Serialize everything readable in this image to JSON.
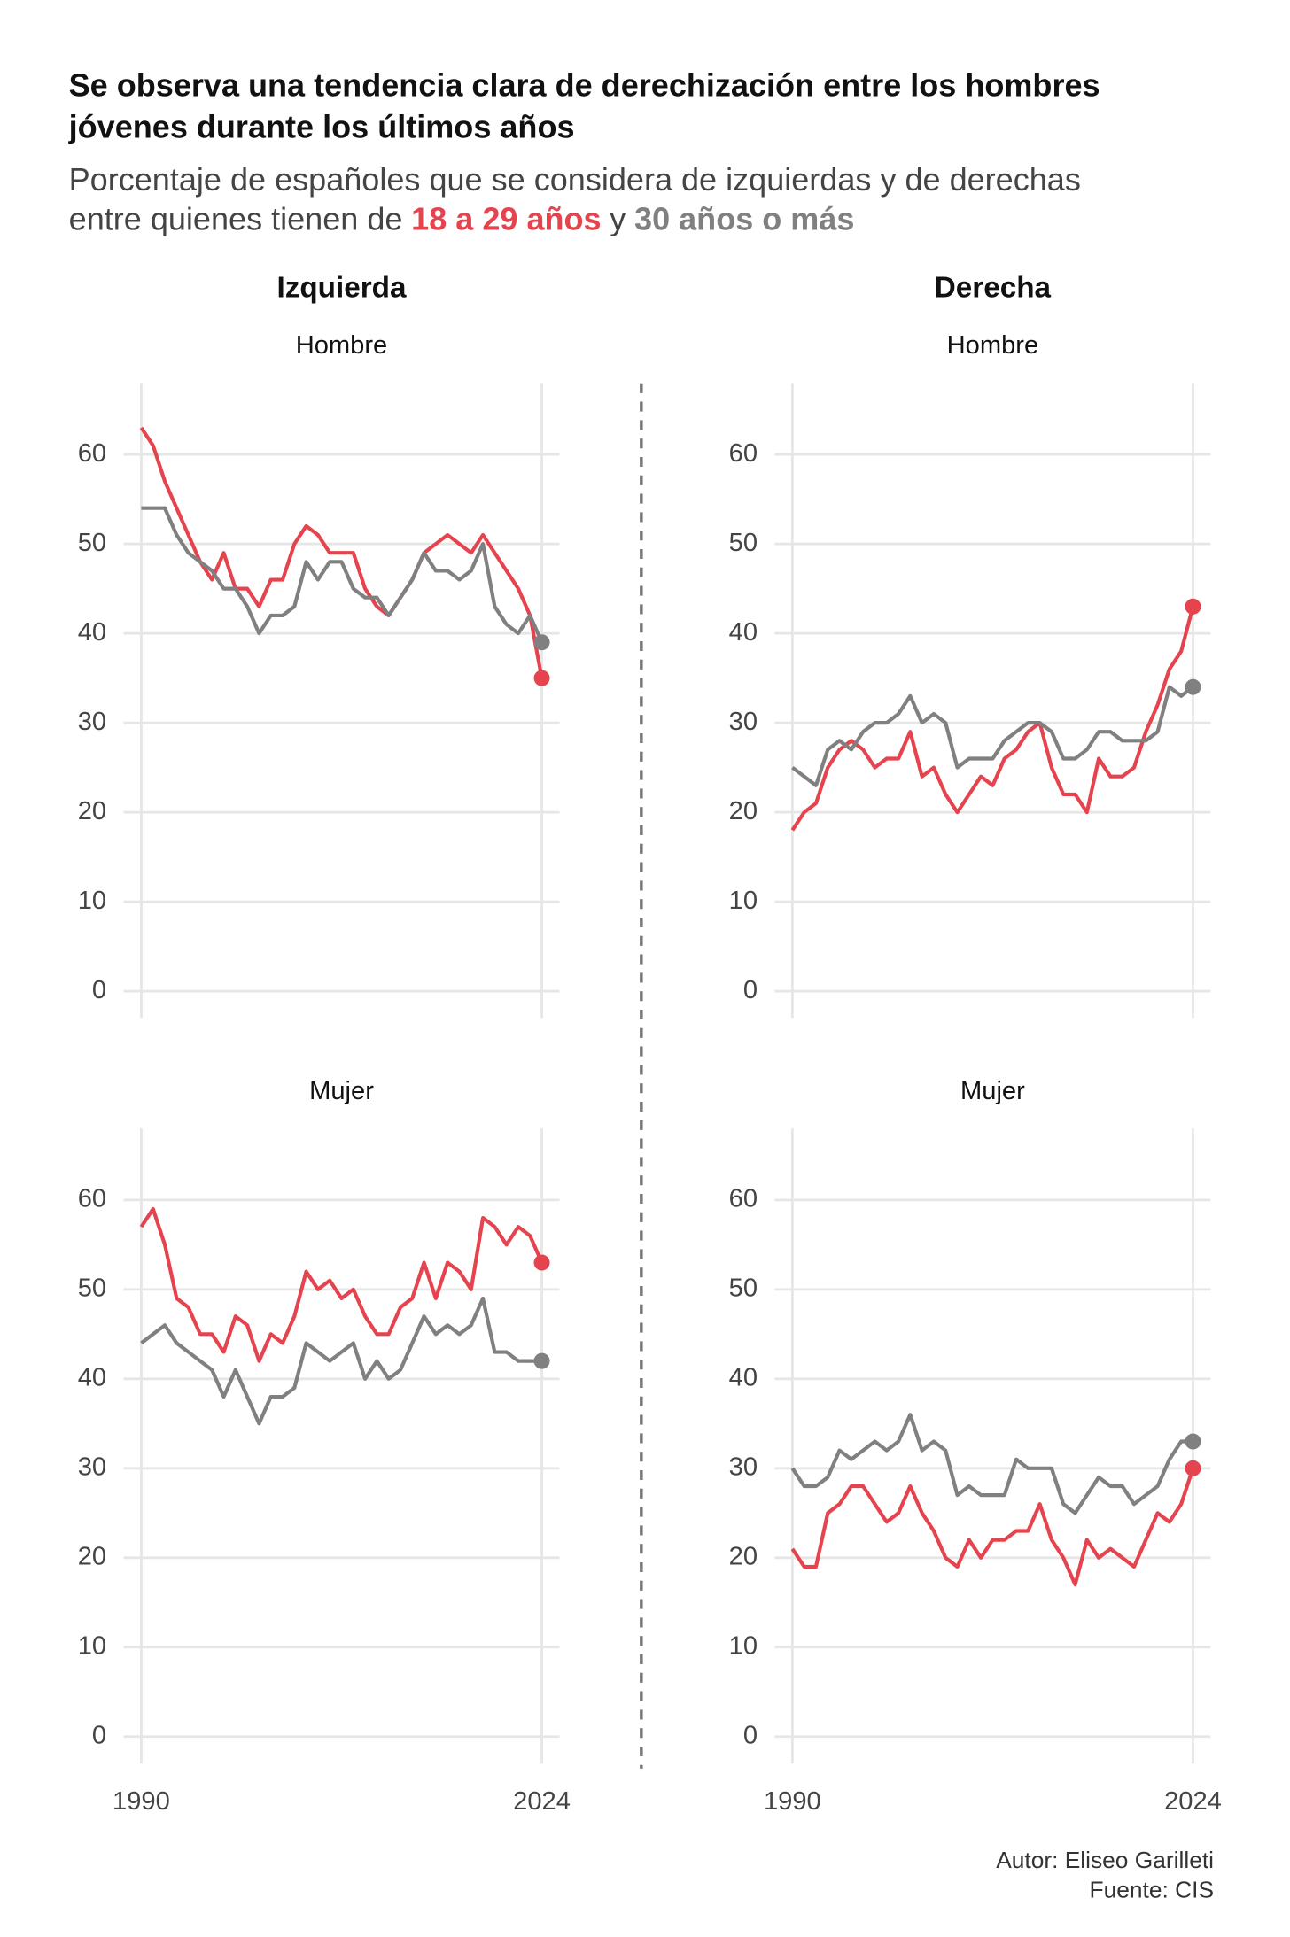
{
  "title_lines": [
    "Se observa una tendencia clara de derechización entre los hombres",
    "jóvenes durante los últimos años"
  ],
  "subtitle_lines": [
    "Porcentaje de españoles que se considera de izquierdas y de derechas",
    "entre quienes tienen de"
  ],
  "subtitle_joiner": "y",
  "columns": [
    "Izquierda",
    "Derecha"
  ],
  "credits": [
    "Autor: Eliseo Garilleti",
    "Fuente: CIS"
  ],
  "chart_data": [
    {
      "type": "line",
      "column": 0,
      "row": 0,
      "subtitle": "Hombre",
      "x": [
        1990,
        1991,
        1992,
        1993,
        1994,
        1995,
        1996,
        1997,
        1998,
        1999,
        2000,
        2001,
        2002,
        2003,
        2004,
        2005,
        2006,
        2007,
        2008,
        2009,
        2010,
        2011,
        2012,
        2013,
        2014,
        2015,
        2016,
        2017,
        2018,
        2019,
        2020,
        2021,
        2022,
        2023,
        2024
      ],
      "xlim": [
        1988.5,
        2025.5
      ],
      "xticks": [
        1990,
        2024
      ],
      "ylim": [
        -3,
        68
      ],
      "yticks": [
        0,
        10,
        20,
        30,
        40,
        50,
        60
      ],
      "grid": true,
      "series": [
        {
          "name": "18 a 29 años",
          "color": "#e5444f",
          "values": [
            63,
            61,
            57,
            54,
            51,
            48,
            46,
            49,
            45,
            45,
            43,
            46,
            46,
            50,
            52,
            51,
            49,
            49,
            49,
            45,
            43,
            42,
            44,
            46,
            49,
            50,
            51,
            50,
            49,
            51,
            49,
            47,
            45,
            42,
            35
          ]
        },
        {
          "name": "30 años o más",
          "color": "#808080",
          "values": [
            54,
            54,
            54,
            51,
            49,
            48,
            47,
            45,
            45,
            43,
            40,
            42,
            42,
            43,
            48,
            46,
            48,
            48,
            45,
            44,
            44,
            42,
            44,
            46,
            49,
            47,
            47,
            46,
            47,
            50,
            43,
            41,
            40,
            42,
            39
          ]
        }
      ]
    },
    {
      "type": "line",
      "column": 1,
      "row": 0,
      "subtitle": "Hombre",
      "x": [
        1990,
        1991,
        1992,
        1993,
        1994,
        1995,
        1996,
        1997,
        1998,
        1999,
        2000,
        2001,
        2002,
        2003,
        2004,
        2005,
        2006,
        2007,
        2008,
        2009,
        2010,
        2011,
        2012,
        2013,
        2014,
        2015,
        2016,
        2017,
        2018,
        2019,
        2020,
        2021,
        2022,
        2023,
        2024
      ],
      "xlim": [
        1988.5,
        2025.5
      ],
      "xticks": [
        1990,
        2024
      ],
      "ylim": [
        -3,
        68
      ],
      "yticks": [
        0,
        10,
        20,
        30,
        40,
        50,
        60
      ],
      "grid": true,
      "series": [
        {
          "name": "18 a 29 años",
          "color": "#e5444f",
          "values": [
            18,
            20,
            21,
            25,
            27,
            28,
            27,
            25,
            26,
            26,
            29,
            24,
            25,
            22,
            20,
            22,
            24,
            23,
            26,
            27,
            29,
            30,
            25,
            22,
            22,
            20,
            26,
            24,
            24,
            25,
            29,
            32,
            36,
            38,
            43
          ]
        },
        {
          "name": "30 años o más",
          "color": "#808080",
          "values": [
            25,
            24,
            23,
            27,
            28,
            27,
            29,
            30,
            30,
            31,
            33,
            30,
            31,
            30,
            25,
            26,
            26,
            26,
            28,
            29,
            30,
            30,
            29,
            26,
            26,
            27,
            29,
            29,
            28,
            28,
            28,
            29,
            34,
            33,
            34
          ]
        }
      ]
    },
    {
      "type": "line",
      "column": 0,
      "row": 1,
      "subtitle": "Mujer",
      "x": [
        1990,
        1991,
        1992,
        1993,
        1994,
        1995,
        1996,
        1997,
        1998,
        1999,
        2000,
        2001,
        2002,
        2003,
        2004,
        2005,
        2006,
        2007,
        2008,
        2009,
        2010,
        2011,
        2012,
        2013,
        2014,
        2015,
        2016,
        2017,
        2018,
        2019,
        2020,
        2021,
        2022,
        2023,
        2024
      ],
      "xlim": [
        1988.5,
        2025.5
      ],
      "xticks": [
        1990,
        2024
      ],
      "ylim": [
        -3,
        68
      ],
      "yticks": [
        0,
        10,
        20,
        30,
        40,
        50,
        60
      ],
      "grid": true,
      "series": [
        {
          "name": "18 a 29 años",
          "color": "#e5444f",
          "values": [
            57,
            59,
            55,
            49,
            48,
            45,
            45,
            43,
            47,
            46,
            42,
            45,
            44,
            47,
            52,
            50,
            51,
            49,
            50,
            47,
            45,
            45,
            48,
            49,
            53,
            49,
            53,
            52,
            50,
            58,
            57,
            55,
            57,
            56,
            53
          ]
        },
        {
          "name": "30 años o más",
          "color": "#808080",
          "values": [
            44,
            45,
            46,
            44,
            43,
            42,
            41,
            38,
            41,
            38,
            35,
            38,
            38,
            39,
            44,
            43,
            42,
            43,
            44,
            40,
            42,
            40,
            41,
            44,
            47,
            45,
            46,
            45,
            46,
            49,
            43,
            43,
            42,
            42,
            42
          ]
        }
      ]
    },
    {
      "type": "line",
      "column": 1,
      "row": 1,
      "subtitle": "Mujer",
      "x": [
        1990,
        1991,
        1992,
        1993,
        1994,
        1995,
        1996,
        1997,
        1998,
        1999,
        2000,
        2001,
        2002,
        2003,
        2004,
        2005,
        2006,
        2007,
        2008,
        2009,
        2010,
        2011,
        2012,
        2013,
        2014,
        2015,
        2016,
        2017,
        2018,
        2019,
        2020,
        2021,
        2022,
        2023,
        2024
      ],
      "xlim": [
        1988.5,
        2025.5
      ],
      "xticks": [
        1990,
        2024
      ],
      "ylim": [
        -3,
        68
      ],
      "yticks": [
        0,
        10,
        20,
        30,
        40,
        50,
        60
      ],
      "grid": true,
      "series": [
        {
          "name": "18 a 29 años",
          "color": "#e5444f",
          "values": [
            21,
            19,
            19,
            25,
            26,
            28,
            28,
            26,
            24,
            25,
            28,
            25,
            23,
            20,
            19,
            22,
            20,
            22,
            22,
            23,
            23,
            26,
            22,
            20,
            17,
            22,
            20,
            21,
            20,
            19,
            22,
            25,
            24,
            26,
            30
          ]
        },
        {
          "name": "30 años o más",
          "color": "#808080",
          "values": [
            30,
            28,
            28,
            29,
            32,
            31,
            32,
            33,
            32,
            33,
            36,
            32,
            33,
            32,
            27,
            28,
            27,
            27,
            27,
            31,
            30,
            30,
            30,
            26,
            25,
            27,
            29,
            28,
            28,
            26,
            27,
            28,
            31,
            33,
            33
          ]
        }
      ]
    }
  ]
}
